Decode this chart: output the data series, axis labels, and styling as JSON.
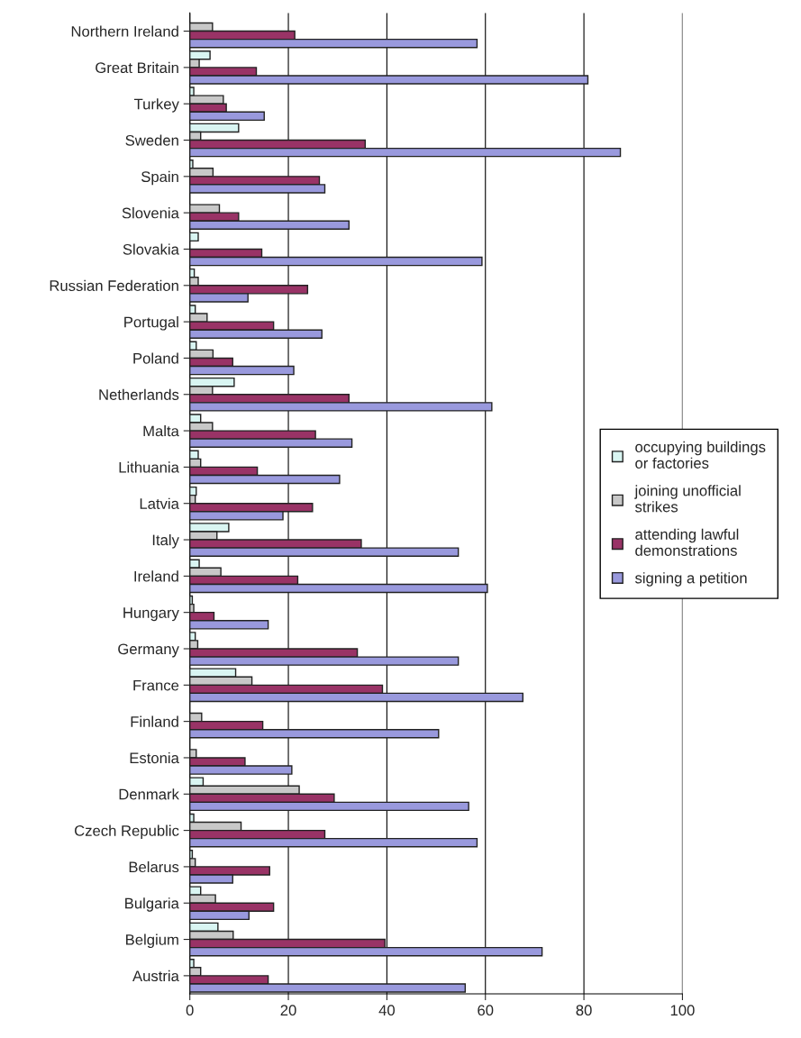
{
  "chart_data": {
    "type": "bar",
    "orientation": "horizontal",
    "categories": [
      "Northern Ireland",
      "Great Britain",
      "Turkey",
      "Sweden",
      "Spain",
      "Slovenia",
      "Slovakia",
      "Russian Federation",
      "Portugal",
      "Poland",
      "Netherlands",
      "Malta",
      "Lithuania",
      "Latvia",
      "Italy",
      "Ireland",
      "Hungary",
      "Germany",
      "France",
      "Finland",
      "Estonia",
      "Denmark",
      "Czech Republic",
      "Belarus",
      "Bulgaria",
      "Belgium",
      "Austria"
    ],
    "series": [
      {
        "name": "occupying buildings\nor factories",
        "color": "#d9f5f2",
        "values": [
          null,
          4.1,
          0.8,
          9.9,
          0.6,
          null,
          1.7,
          0.9,
          1.1,
          1.3,
          9.0,
          2.2,
          1.7,
          1.3,
          7.9,
          1.9,
          0.5,
          1.1,
          9.3,
          null,
          null,
          2.7,
          0.8,
          0.5,
          2.2,
          5.7,
          0.8
        ]
      },
      {
        "name": "joining unofficial\nstrikes",
        "color": "#c8c8c8",
        "values": [
          4.6,
          1.9,
          6.8,
          2.2,
          4.7,
          6.0,
          null,
          1.7,
          3.5,
          4.7,
          4.6,
          4.6,
          2.2,
          1.1,
          5.5,
          6.3,
          0.8,
          1.6,
          12.6,
          2.4,
          1.3,
          22.2,
          10.4,
          1.1,
          5.2,
          8.8,
          2.2
        ]
      },
      {
        "name": "attending lawful\ndemonstrations",
        "color": "#993366",
        "values": [
          21.3,
          13.5,
          7.4,
          35.6,
          26.3,
          9.9,
          14.6,
          23.9,
          17.0,
          8.7,
          32.3,
          25.5,
          13.7,
          24.9,
          34.8,
          21.9,
          4.9,
          34.0,
          39.1,
          14.8,
          11.2,
          29.3,
          27.4,
          16.2,
          17.0,
          39.6,
          15.9
        ]
      },
      {
        "name": "signing a petition",
        "color": "#9999dd",
        "values": [
          58.3,
          80.8,
          15.1,
          87.4,
          27.4,
          32.3,
          59.3,
          11.8,
          26.8,
          21.1,
          61.3,
          32.9,
          30.4,
          18.9,
          54.5,
          60.4,
          15.9,
          54.5,
          67.6,
          50.5,
          20.7,
          56.6,
          58.3,
          8.7,
          12.0,
          71.5,
          55.9
        ]
      }
    ],
    "xlim": [
      0,
      100
    ],
    "xticks": [
      0,
      20,
      40,
      60,
      80,
      100
    ],
    "grid": "x",
    "legend": "right"
  }
}
